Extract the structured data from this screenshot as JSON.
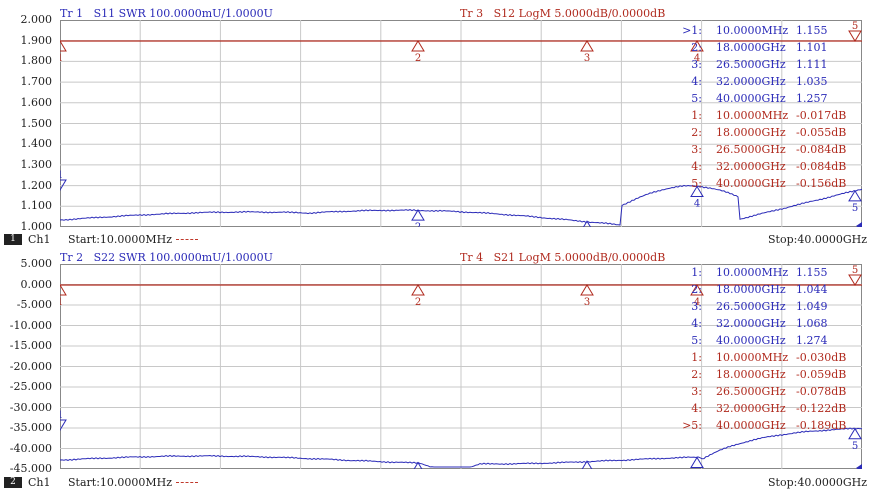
{
  "colors": {
    "blue": "#2b2bb8",
    "red": "#b02a1e",
    "grid": "#c8c8c8",
    "border": "#888888"
  },
  "upper": {
    "y_labels": [
      "2.000",
      "1.900",
      "1.800",
      "1.700",
      "1.600",
      "1.500",
      "1.400",
      "1.300",
      "1.200",
      "1.100",
      "1.000"
    ],
    "tr_a": {
      "name": "Tr 1",
      "meas": "S11 SWR 100.0000mU/1.0000U"
    },
    "tr_b": {
      "name": "Tr 3",
      "meas": "S12 LogM 5.0000dB/0.0000dB"
    },
    "markers": [
      {
        "active": ">1:",
        "freq": "10.0000MHz",
        "val": "1.155",
        "color": "blue"
      },
      {
        "active": "2:",
        "freq": "18.0000GHz",
        "val": "1.101",
        "color": "blue"
      },
      {
        "active": "3:",
        "freq": "26.5000GHz",
        "val": "1.111",
        "color": "blue"
      },
      {
        "active": "4:",
        "freq": "32.0000GHz",
        "val": "1.035",
        "color": "blue"
      },
      {
        "active": "5:",
        "freq": "40.0000GHz",
        "val": "1.257",
        "color": "blue"
      },
      {
        "active": "1:",
        "freq": "10.0000MHz",
        "val": "-0.017dB",
        "color": "red"
      },
      {
        "active": "2:",
        "freq": "18.0000GHz",
        "val": "-0.055dB",
        "color": "red"
      },
      {
        "active": "3:",
        "freq": "26.5000GHz",
        "val": "-0.084dB",
        "color": "red"
      },
      {
        "active": "4:",
        "freq": "32.0000GHz",
        "val": "-0.084dB",
        "color": "red"
      },
      {
        "active": "5:",
        "freq": "40.0000GHz",
        "val": "-0.156dB",
        "color": "red"
      }
    ],
    "footer": {
      "num": "1",
      "ch": "Ch1",
      "start": "Start:10.0000MHz",
      "stop": "Stop:40.0000GHz"
    }
  },
  "lower": {
    "y_labels": [
      "5.000",
      "0.000",
      "-5.000",
      "-10.000",
      "-15.000",
      "-20.000",
      "-25.000",
      "-30.000",
      "-35.000",
      "-40.000",
      "-45.000"
    ],
    "tr_a": {
      "name": "Tr 2",
      "meas": "S22 SWR 100.0000mU/1.0000U"
    },
    "tr_b": {
      "name": "Tr 4",
      "meas": "S21 LogM 5.0000dB/0.0000dB"
    },
    "markers": [
      {
        "active": "1:",
        "freq": "10.0000MHz",
        "val": "1.155",
        "color": "blue"
      },
      {
        "active": "2:",
        "freq": "18.0000GHz",
        "val": "1.044",
        "color": "blue"
      },
      {
        "active": "3:",
        "freq": "26.5000GHz",
        "val": "1.049",
        "color": "blue"
      },
      {
        "active": "4:",
        "freq": "32.0000GHz",
        "val": "1.068",
        "color": "blue"
      },
      {
        "active": "5:",
        "freq": "40.0000GHz",
        "val": "1.274",
        "color": "blue"
      },
      {
        "active": "1:",
        "freq": "10.0000MHz",
        "val": "-0.030dB",
        "color": "red"
      },
      {
        "active": "2:",
        "freq": "18.0000GHz",
        "val": "-0.059dB",
        "color": "red"
      },
      {
        "active": "3:",
        "freq": "26.5000GHz",
        "val": "-0.078dB",
        "color": "red"
      },
      {
        "active": "4:",
        "freq": "32.0000GHz",
        "val": "-0.122dB",
        "color": "red"
      },
      {
        "active": ">5:",
        "freq": "40.0000GHz",
        "val": "-0.189dB",
        "color": "red"
      }
    ],
    "footer": {
      "num": "2",
      "ch": "Ch1",
      "start": "Start:10.0000MHz",
      "stop": "Stop:40.0000GHz"
    }
  },
  "marker_labels": [
    "1",
    "2",
    "3",
    "4",
    "5"
  ]
}
